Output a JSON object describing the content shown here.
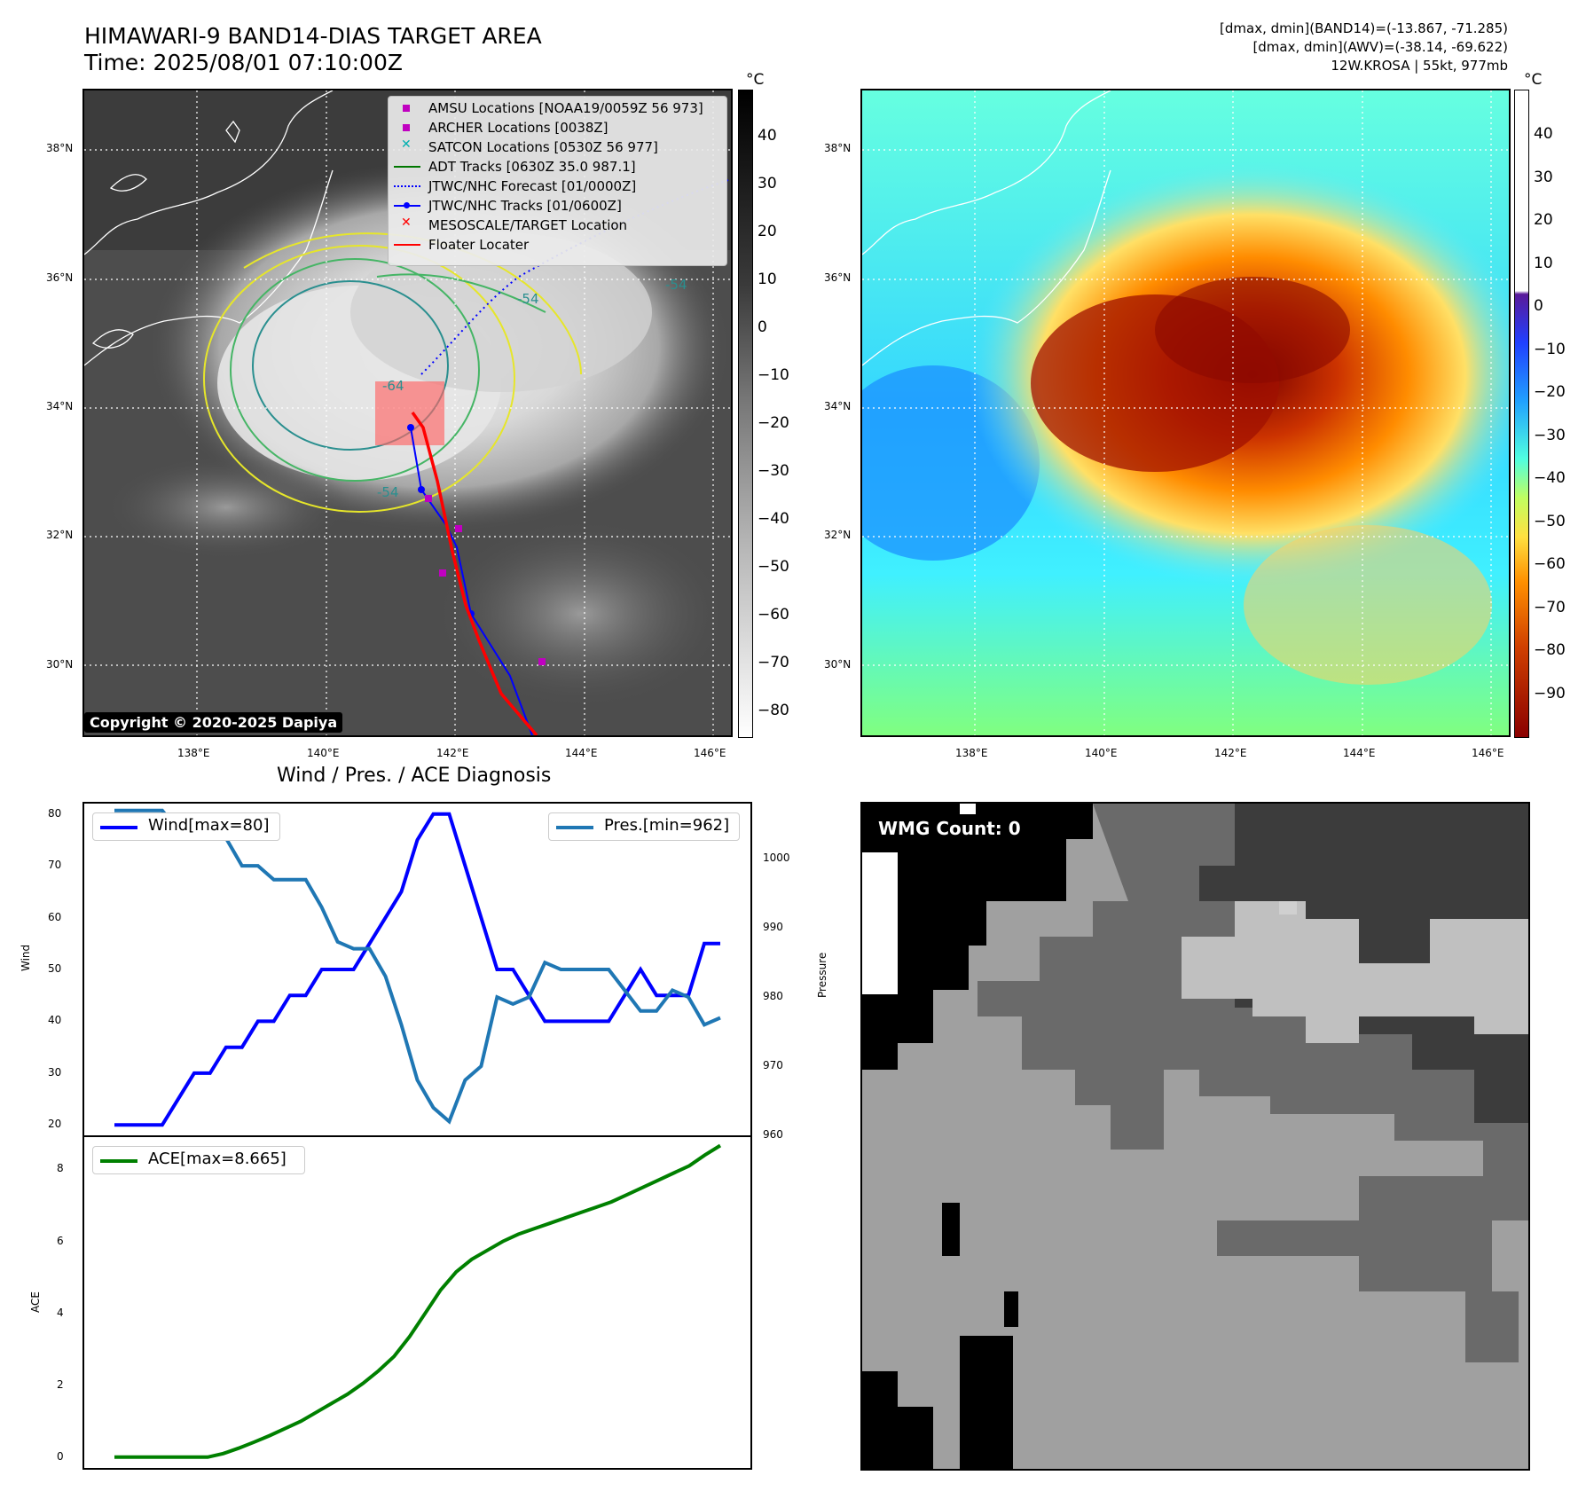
{
  "header": {
    "title_line1": "HIMAWARI-9 BAND14-DIAS TARGET AREA",
    "title_line2": "Time: 2025/08/01 07:10:00Z",
    "info_line1": "[dmax, dmin](BAND14)=(-13.867, -71.285)",
    "info_line2": "[dmax, dmin](AWV)=(-38.14, -69.622)",
    "info_line3": "12W.KROSA | 55kt, 977mb"
  },
  "map": {
    "lat_labels": [
      "38°N",
      "36°N",
      "34°N",
      "32°N",
      "30°N"
    ],
    "lon_labels": [
      "138°E",
      "140°E",
      "142°E",
      "144°E",
      "146°E"
    ],
    "contour_labels": [
      "-64",
      "-54",
      "-54",
      "-54"
    ],
    "copyright": "Copyright © 2020-2025 Dapiya"
  },
  "legend": {
    "items": [
      {
        "label": "AMSU Locations [NOAA19/0059Z 56 973]",
        "color": "#c000c0",
        "marker": "square"
      },
      {
        "label": "ARCHER Locations [0038Z]",
        "color": "#c000c0",
        "marker": "square"
      },
      {
        "label": "SATCON Locations [0530Z 56 977]",
        "color": "#00b0b0",
        "marker": "x"
      },
      {
        "label": "ADT Tracks [0630Z 35.0 987.1]",
        "color": "#007700",
        "marker": "line"
      },
      {
        "label": "JTWC/NHC Forecast [01/0000Z]",
        "color": "#0000ff",
        "marker": "dotted"
      },
      {
        "label": "JTWC/NHC Tracks [01/0600Z]",
        "color": "#0000ff",
        "marker": "line-dot"
      },
      {
        "label": "MESOSCALE/TARGET Location",
        "color": "#ff0000",
        "marker": "x"
      },
      {
        "label": "Floater Locater",
        "color": "#ff0000",
        "marker": "line"
      }
    ]
  },
  "colorbars": {
    "unit": "°C",
    "left_ticks": [
      "40",
      "30",
      "20",
      "10",
      "0",
      "−10",
      "−20",
      "−30",
      "−40",
      "−50",
      "−60",
      "−70",
      "−80"
    ],
    "right_ticks": [
      "40",
      "30",
      "20",
      "10",
      "0",
      "−10",
      "−20",
      "−30",
      "−40",
      "−50",
      "−60",
      "−70",
      "−80",
      "−90"
    ]
  },
  "wmg": {
    "label": "WMG Count: 0"
  },
  "chart_data": [
    {
      "type": "line",
      "title": "Wind / Pres. / ACE Diagnosis",
      "ylabel": "Wind",
      "ylabel_right": "Pressure",
      "ylim": [
        18,
        82
      ],
      "ylim_right": [
        960,
        1008
      ],
      "yticks": [
        20,
        30,
        40,
        50,
        60,
        70,
        80
      ],
      "yticks_right": [
        960,
        970,
        980,
        990,
        1000
      ],
      "series": [
        {
          "name": "Wind[max=80]",
          "color": "#0000ff",
          "axis": "left",
          "values": [
            20,
            20,
            20,
            20,
            25,
            30,
            30,
            35,
            35,
            40,
            40,
            45,
            45,
            50,
            50,
            50,
            55,
            60,
            65,
            75,
            80,
            80,
            70,
            60,
            50,
            50,
            45,
            40,
            40,
            40,
            40,
            40,
            45,
            50,
            45,
            45,
            45,
            55,
            55
          ]
        },
        {
          "name": "Pres.[min=962]",
          "color": "#1f77b4",
          "axis": "right",
          "values": [
            1007,
            1007,
            1007,
            1007,
            1004,
            1004,
            1003,
            1003,
            999,
            999,
            997,
            997,
            997,
            993,
            988,
            987,
            987,
            983,
            976,
            968,
            964,
            962,
            968,
            970,
            980,
            979,
            980,
            985,
            984,
            984,
            984,
            984,
            981,
            978,
            978,
            981,
            980,
            976,
            977
          ]
        }
      ]
    },
    {
      "type": "line",
      "ylabel": "ACE",
      "ylim": [
        -0.3,
        8.9
      ],
      "yticks": [
        0,
        2,
        4,
        6,
        8
      ],
      "series": [
        {
          "name": "ACE[max=8.665]",
          "color": "#008000",
          "values": [
            0,
            0,
            0,
            0,
            0,
            0,
            0,
            0.1,
            0.25,
            0.42,
            0.6,
            0.8,
            1.0,
            1.25,
            1.5,
            1.75,
            2.05,
            2.4,
            2.8,
            3.35,
            4.0,
            4.65,
            5.15,
            5.5,
            5.75,
            6.0,
            6.2,
            6.35,
            6.5,
            6.65,
            6.8,
            6.95,
            7.1,
            7.3,
            7.5,
            7.7,
            7.9,
            8.1,
            8.4,
            8.665
          ]
        }
      ]
    }
  ]
}
